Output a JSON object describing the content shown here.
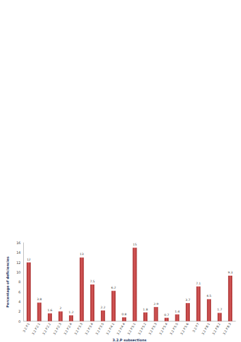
{
  "chart_data": {
    "type": "bar",
    "x_label": "3.2.P subsections",
    "y_label": "Percentage of deficiencies",
    "categories": [
      "3.2.P.1",
      "3.2.P.2.1",
      "3.2.P.2.2",
      "3.2.P.2.3",
      "3.2.P.2.4",
      "3.2.P.3.3",
      "3.2.P.3.4",
      "3.2.P.3.5",
      "3.2.P.4.1",
      "3.2.P.4.4",
      "3.2.P.5.1",
      "3.2.P.5.2",
      "3.2.P.5.3",
      "3.2.P.5.4",
      "3.2.P.5.5",
      "3.2.P.5.6",
      "3.2.P.7",
      "3.2.P.8.1",
      "3.2.P.8.2",
      "3.2.P.8.3"
    ],
    "values": [
      12,
      3.8,
      1.6,
      2,
      1.2,
      13,
      7.5,
      2.2,
      6.2,
      0.8,
      15,
      1.8,
      2.9,
      0.7,
      1.4,
      3.7,
      7.1,
      4.5,
      1.7,
      9.3
    ],
    "color": "#a62b2b",
    "ylim": [
      0,
      16
    ],
    "yticks": [
      0,
      2,
      4,
      6,
      8,
      10,
      12,
      14,
      16
    ],
    "grid": false,
    "data_labels": true
  }
}
